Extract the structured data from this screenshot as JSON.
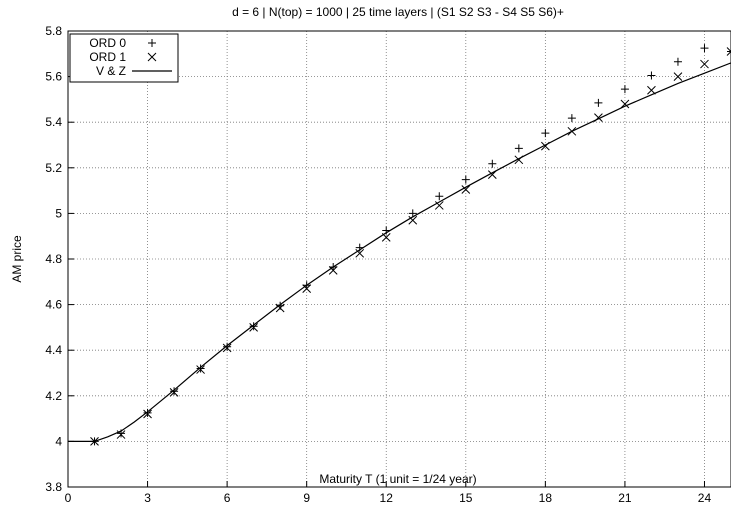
{
  "chart_data": {
    "type": "scatter",
    "title": "d = 6 | N(top) = 1000 | 25 time layers | (S1 S2 S3 - S4 S5 S6)+",
    "xlabel": "Maturity T (1 unit = 1/24 year)",
    "ylabel": "AM price",
    "xlim": [
      0,
      25
    ],
    "ylim": [
      3.8,
      5.8
    ],
    "xticks": [
      0,
      3,
      6,
      9,
      12,
      15,
      18,
      21,
      24
    ],
    "yticks": [
      3.8,
      4,
      4.2,
      4.4,
      4.6,
      4.8,
      5,
      5.2,
      5.4,
      5.6,
      5.8
    ],
    "xtick_labels": [
      "0",
      "3",
      "6",
      "9",
      "12",
      "15",
      "18",
      "21",
      "24"
    ],
    "ytick_labels": [
      "3.8",
      "4",
      "4.2",
      "4.4",
      "4.6",
      "4.8",
      "5",
      "5.2",
      "5.4",
      "5.6",
      "5.8"
    ],
    "grid": true,
    "legend_position": "top-left",
    "series": [
      {
        "name": "ORD 0",
        "marker": "plus",
        "x": [
          1,
          2,
          3,
          4,
          5,
          6,
          7,
          8,
          9,
          10,
          11,
          12,
          13,
          14,
          15,
          16,
          17,
          18,
          19,
          20,
          21,
          22,
          23,
          24,
          25
        ],
        "y": [
          4.0,
          4.035,
          4.125,
          4.22,
          4.32,
          4.415,
          4.505,
          4.595,
          4.685,
          4.765,
          4.85,
          4.925,
          5.0,
          5.075,
          5.148,
          5.218,
          5.285,
          5.352,
          5.418,
          5.485,
          5.545,
          5.605,
          5.665,
          5.725,
          5.71
        ]
      },
      {
        "name": "ORD 1",
        "marker": "cross",
        "x": [
          1,
          2,
          3,
          4,
          5,
          6,
          7,
          8,
          9,
          10,
          11,
          12,
          13,
          14,
          15,
          16,
          17,
          18,
          19,
          20,
          21,
          22,
          23,
          24,
          25
        ],
        "y": [
          4.0,
          4.03,
          4.12,
          4.215,
          4.315,
          4.41,
          4.5,
          4.585,
          4.67,
          4.75,
          4.825,
          4.895,
          4.97,
          5.035,
          5.105,
          5.17,
          5.235,
          5.295,
          5.36,
          5.42,
          5.48,
          5.54,
          5.6,
          5.655,
          5.71
        ]
      },
      {
        "name": "V & Z",
        "marker": "line",
        "x": [
          0,
          1,
          1.5,
          2,
          2.5,
          3,
          4,
          5,
          6,
          7,
          8,
          9,
          10,
          11,
          12,
          13,
          14,
          15,
          16,
          17,
          18,
          19,
          20,
          21,
          22,
          23,
          24,
          25
        ],
        "y": [
          4.0,
          4.0,
          4.02,
          4.045,
          4.085,
          4.13,
          4.225,
          4.325,
          4.42,
          4.51,
          4.6,
          4.685,
          4.765,
          4.84,
          4.915,
          4.985,
          5.05,
          5.115,
          5.178,
          5.24,
          5.3,
          5.36,
          5.415,
          5.47,
          5.52,
          5.57,
          5.615,
          5.66
        ]
      }
    ]
  }
}
